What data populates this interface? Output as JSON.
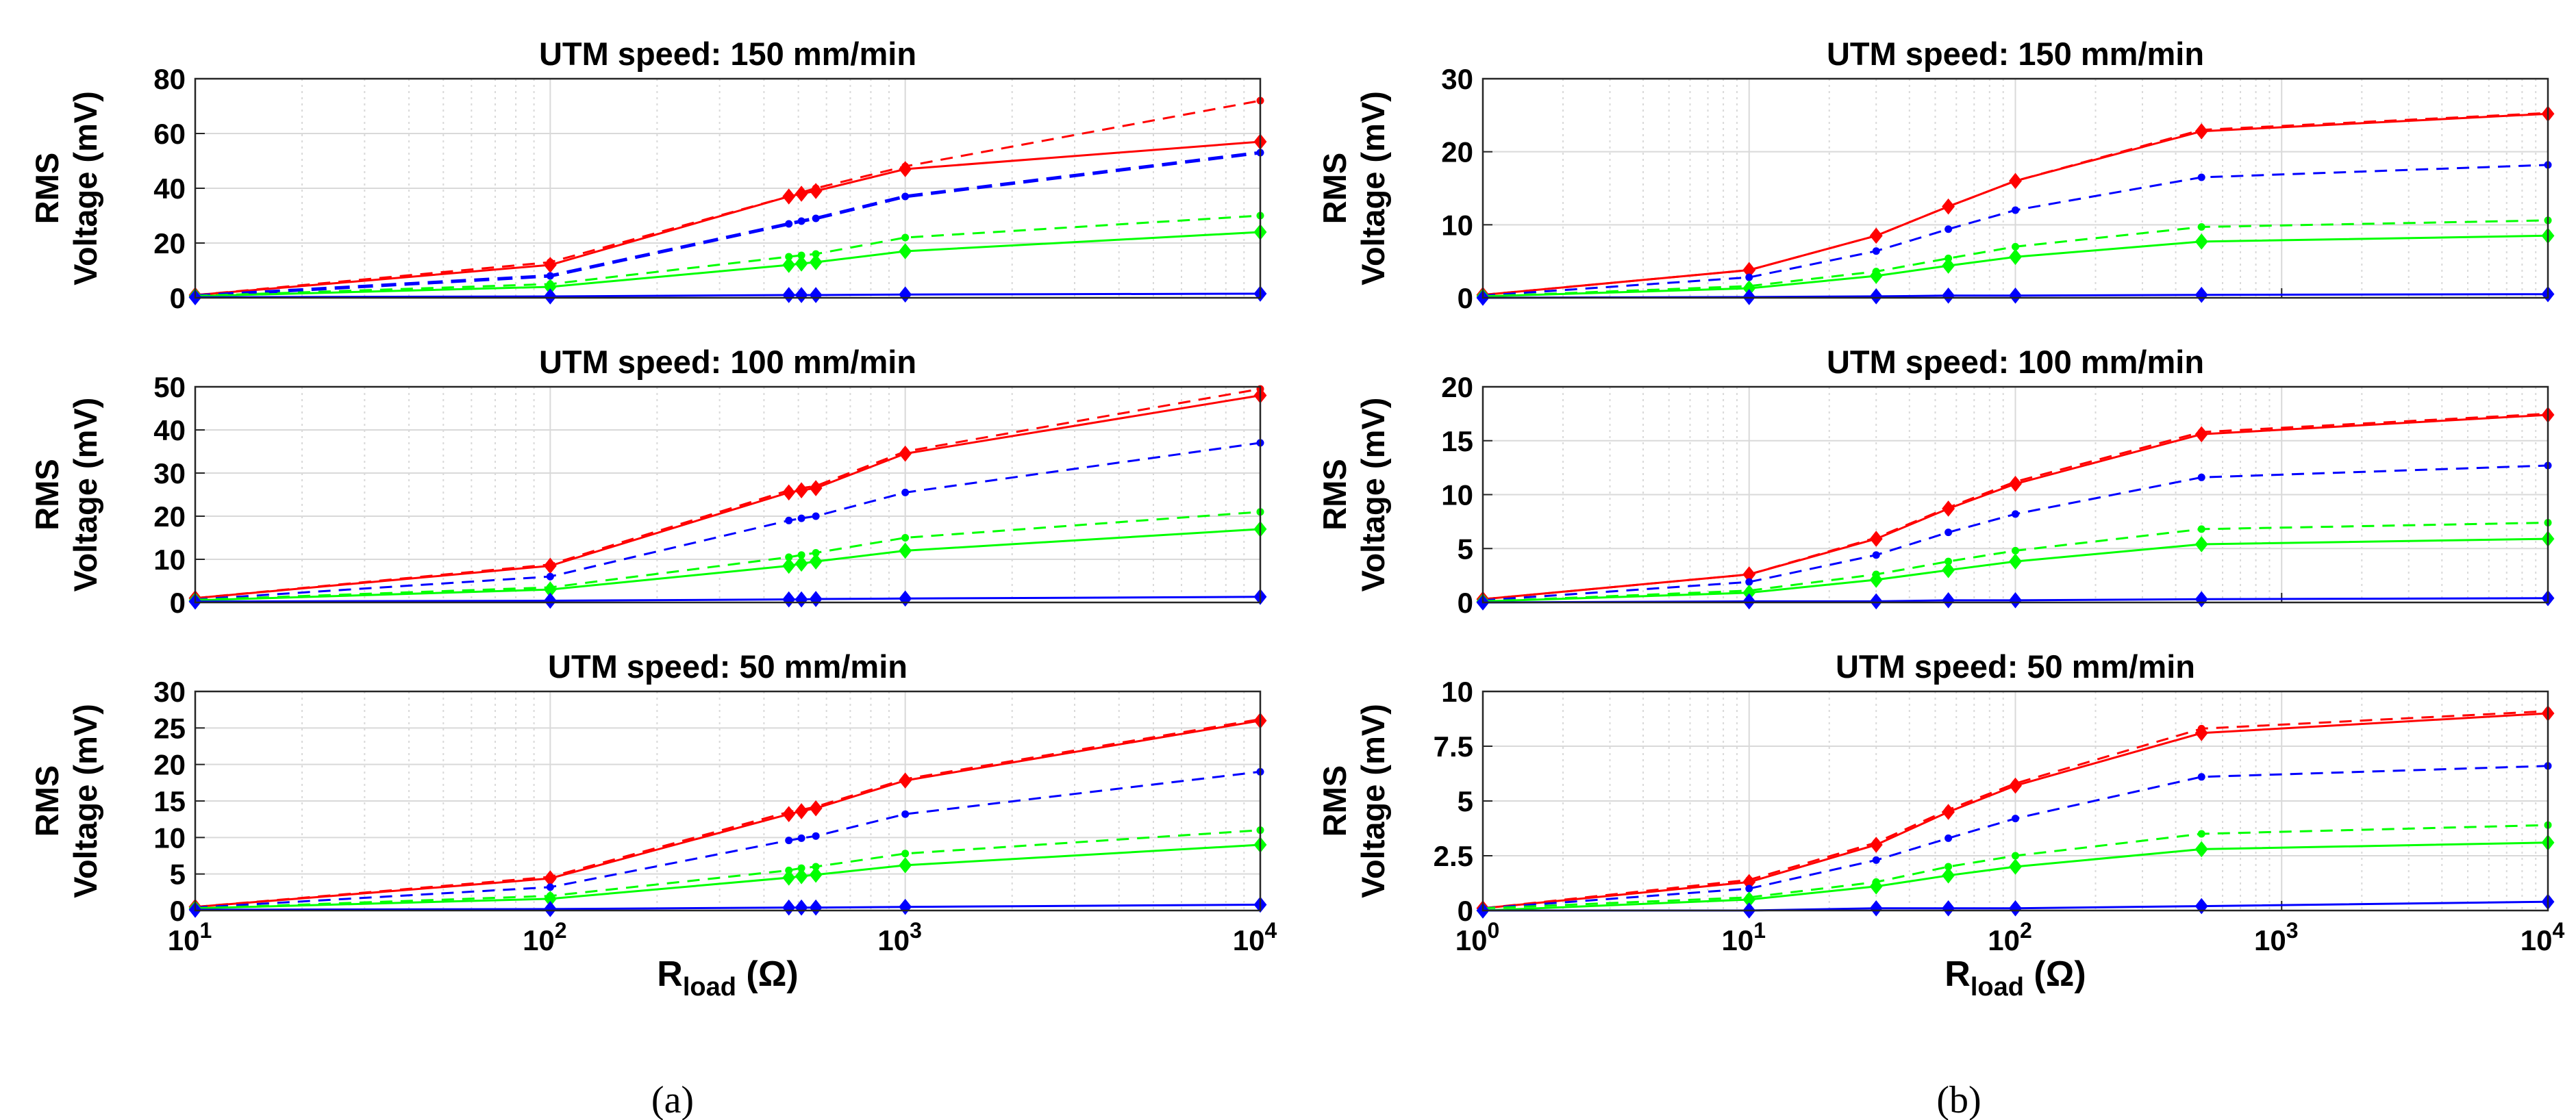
{
  "colors": {
    "red": "#ff0000",
    "blue": "#0000ff",
    "green": "#00ff00",
    "grid": "#d9d9d9",
    "axis": "#262626"
  },
  "figure": {
    "captions": [
      "(a)",
      "(b)"
    ]
  },
  "chart_data": [
    {
      "panel": "a",
      "type": "line",
      "xscale": "log",
      "title": "UTM speed: 150 mm/min",
      "ylabel_lines": [
        "RMS",
        "Voltage (mV)"
      ],
      "xlabel": "",
      "xlim": [
        10,
        10000
      ],
      "ylim": [
        0,
        80
      ],
      "yticks": [
        0,
        20,
        40,
        60,
        80
      ],
      "ytick_labels": [
        "0",
        "20",
        "40",
        "60",
        "80"
      ],
      "xtick_labels": [],
      "grid": true,
      "x": [
        10,
        100,
        470,
        510,
        560,
        1000,
        10000
      ],
      "series": [
        {
          "color": "red",
          "style": "dashed",
          "marker": "dot",
          "values": [
            1.0,
            13,
            37,
            38.5,
            40,
            48,
            72
          ]
        },
        {
          "color": "red",
          "style": "solid",
          "marker": "diamond",
          "values": [
            1.0,
            12,
            37,
            38,
            39,
            47,
            57
          ]
        },
        {
          "color": "blue",
          "style": "dashed",
          "marker": "dot",
          "width": "thick",
          "values": [
            0.7,
            8,
            27,
            28,
            29,
            37,
            53
          ]
        },
        {
          "color": "green",
          "style": "dashed",
          "marker": "dot",
          "values": [
            0.7,
            5,
            15,
            15.5,
            16,
            22,
            30
          ]
        },
        {
          "color": "green",
          "style": "solid",
          "marker": "diamond",
          "values": [
            0.6,
            4,
            12,
            12.5,
            13,
            17,
            24
          ]
        },
        {
          "color": "blue",
          "style": "solid",
          "marker": "diamond",
          "values": [
            0.2,
            0.5,
            1.0,
            1.0,
            1.0,
            1.2,
            1.5
          ]
        }
      ]
    },
    {
      "panel": "a",
      "type": "line",
      "xscale": "log",
      "title": "UTM speed: 100 mm/min",
      "ylabel_lines": [
        "RMS",
        "Voltage (mV)"
      ],
      "xlabel": "",
      "xlim": [
        10,
        10000
      ],
      "ylim": [
        0,
        50
      ],
      "yticks": [
        0,
        10,
        20,
        30,
        40,
        50
      ],
      "ytick_labels": [
        "0",
        "10",
        "20",
        "30",
        "40",
        "50"
      ],
      "xtick_labels": [],
      "grid": true,
      "x": [
        10,
        100,
        470,
        510,
        560,
        1000,
        10000
      ],
      "series": [
        {
          "color": "red",
          "style": "dashed",
          "marker": "dot",
          "values": [
            1.0,
            8.8,
            26,
            26.5,
            27,
            35,
            49.5
          ]
        },
        {
          "color": "red",
          "style": "solid",
          "marker": "diamond",
          "values": [
            1.0,
            8.5,
            25.5,
            26,
            26.5,
            34.5,
            48
          ]
        },
        {
          "color": "blue",
          "style": "dashed",
          "marker": "dot",
          "values": [
            0.7,
            6,
            19,
            19.5,
            20,
            25.5,
            37
          ]
        },
        {
          "color": "green",
          "style": "dashed",
          "marker": "dot",
          "values": [
            0.6,
            3.5,
            10.5,
            11,
            11.5,
            15,
            21
          ]
        },
        {
          "color": "green",
          "style": "solid",
          "marker": "diamond",
          "values": [
            0.5,
            3,
            8.5,
            9,
            9.5,
            12,
            17
          ]
        },
        {
          "color": "blue",
          "style": "solid",
          "marker": "diamond",
          "values": [
            0.2,
            0.4,
            0.7,
            0.7,
            0.8,
            0.9,
            1.3
          ]
        }
      ]
    },
    {
      "panel": "a",
      "type": "line",
      "xscale": "log",
      "title": "UTM speed: 50 mm/min",
      "ylabel_lines": [
        "RMS",
        "Voltage (mV)"
      ],
      "xlabel_main": "R",
      "xlabel_sub": "load",
      "xlabel_tail": " (Ω)",
      "xlim": [
        10,
        10000
      ],
      "ylim": [
        0,
        30
      ],
      "yticks": [
        0,
        5,
        10,
        15,
        20,
        25,
        30
      ],
      "ytick_labels": [
        "0",
        "5",
        "10",
        "15",
        "20",
        "25",
        "30"
      ],
      "xtick_exponents": [
        "1",
        "2",
        "3",
        "4"
      ],
      "xtick_base": "10",
      "grid": true,
      "x": [
        10,
        100,
        470,
        510,
        560,
        1000,
        10000
      ],
      "series": [
        {
          "color": "red",
          "style": "dashed",
          "marker": "dot",
          "values": [
            0.5,
            4.6,
            13.5,
            13.8,
            14.2,
            18,
            26.2
          ]
        },
        {
          "color": "red",
          "style": "solid",
          "marker": "diamond",
          "values": [
            0.5,
            4.4,
            13.2,
            13.6,
            14.0,
            17.8,
            26
          ]
        },
        {
          "color": "blue",
          "style": "dashed",
          "marker": "dot",
          "values": [
            0.4,
            3.2,
            9.6,
            9.9,
            10.2,
            13.2,
            19
          ]
        },
        {
          "color": "green",
          "style": "dashed",
          "marker": "dot",
          "values": [
            0.3,
            2.0,
            5.5,
            5.8,
            6.0,
            7.8,
            11
          ]
        },
        {
          "color": "green",
          "style": "solid",
          "marker": "diamond",
          "values": [
            0.3,
            1.6,
            4.5,
            4.7,
            4.9,
            6.2,
            9
          ]
        },
        {
          "color": "blue",
          "style": "solid",
          "marker": "diamond",
          "values": [
            0.1,
            0.2,
            0.4,
            0.4,
            0.4,
            0.5,
            0.8
          ]
        }
      ]
    },
    {
      "panel": "b",
      "type": "line",
      "xscale": "log",
      "title": "UTM speed: 150 mm/min",
      "ylabel_lines": [
        "RMS",
        "Voltage (mV)"
      ],
      "xlabel": "",
      "xlim": [
        1,
        10000
      ],
      "ylim": [
        0,
        30
      ],
      "yticks": [
        0,
        10,
        20,
        30
      ],
      "ytick_labels": [
        "0",
        "10",
        "20",
        "30"
      ],
      "xtick_labels": [],
      "grid": true,
      "x": [
        1,
        10,
        30,
        56,
        100,
        500,
        10000
      ],
      "series": [
        {
          "color": "red",
          "style": "dashed",
          "marker": "dot",
          "values": [
            0.4,
            3.8,
            8.5,
            12.5,
            16,
            23,
            25.3
          ]
        },
        {
          "color": "red",
          "style": "solid",
          "marker": "diamond",
          "values": [
            0.4,
            3.8,
            8.5,
            12.5,
            16,
            22.8,
            25.2
          ]
        },
        {
          "color": "blue",
          "style": "dashed",
          "marker": "dot",
          "values": [
            0.3,
            2.8,
            6.4,
            9.4,
            12,
            16.5,
            18.2
          ]
        },
        {
          "color": "green",
          "style": "dashed",
          "marker": "dot",
          "values": [
            0.2,
            1.6,
            3.6,
            5.4,
            7,
            9.7,
            10.6
          ]
        },
        {
          "color": "green",
          "style": "solid",
          "marker": "diamond",
          "values": [
            0.2,
            1.3,
            3.0,
            4.4,
            5.6,
            7.7,
            8.5
          ]
        },
        {
          "color": "blue",
          "style": "solid",
          "marker": "diamond",
          "values": [
            0.0,
            0.1,
            0.2,
            0.3,
            0.3,
            0.4,
            0.5
          ]
        }
      ]
    },
    {
      "panel": "b",
      "type": "line",
      "xscale": "log",
      "title": "UTM speed: 100 mm/min",
      "ylabel_lines": [
        "RMS",
        "Voltage (mV)"
      ],
      "xlabel": "",
      "xlim": [
        1,
        10000
      ],
      "ylim": [
        0,
        20
      ],
      "yticks": [
        0,
        5,
        10,
        15,
        20
      ],
      "ytick_labels": [
        "0",
        "5",
        "10",
        "15",
        "20"
      ],
      "xtick_labels": [],
      "grid": true,
      "x": [
        1,
        10,
        30,
        56,
        100,
        500,
        10000
      ],
      "series": [
        {
          "color": "red",
          "style": "dashed",
          "marker": "dot",
          "values": [
            0.3,
            2.6,
            6.0,
            8.8,
            11.2,
            15.8,
            17.5
          ]
        },
        {
          "color": "red",
          "style": "solid",
          "marker": "diamond",
          "values": [
            0.3,
            2.6,
            5.9,
            8.7,
            11.0,
            15.6,
            17.4
          ]
        },
        {
          "color": "blue",
          "style": "dashed",
          "marker": "dot",
          "values": [
            0.2,
            1.9,
            4.4,
            6.5,
            8.2,
            11.6,
            12.7
          ]
        },
        {
          "color": "green",
          "style": "dashed",
          "marker": "dot",
          "values": [
            0.1,
            1.1,
            2.6,
            3.8,
            4.8,
            6.8,
            7.4
          ]
        },
        {
          "color": "green",
          "style": "solid",
          "marker": "diamond",
          "values": [
            0.1,
            0.9,
            2.1,
            3.0,
            3.8,
            5.4,
            5.9
          ]
        },
        {
          "color": "blue",
          "style": "solid",
          "marker": "diamond",
          "values": [
            0.0,
            0.1,
            0.1,
            0.2,
            0.2,
            0.3,
            0.4
          ]
        }
      ]
    },
    {
      "panel": "b",
      "type": "line",
      "xscale": "log",
      "title": "UTM speed: 50 mm/min",
      "ylabel_lines": [
        "RMS",
        "Voltage (mV)"
      ],
      "xlabel_main": "R",
      "xlabel_sub": "load",
      "xlabel_tail": " (Ω)",
      "xlim": [
        1,
        10000
      ],
      "ylim": [
        0,
        10
      ],
      "yticks": [
        0,
        2.5,
        5,
        7.5,
        10
      ],
      "ytick_labels": [
        "0",
        "2.5",
        "5",
        "7.5",
        "10"
      ],
      "xtick_exponents": [
        "0",
        "1",
        "2",
        "3",
        "4"
      ],
      "xtick_base": "10",
      "grid": true,
      "x": [
        1,
        10,
        30,
        56,
        100,
        500,
        10000
      ],
      "series": [
        {
          "color": "red",
          "style": "dashed",
          "marker": "dot",
          "values": [
            0.1,
            1.4,
            3.1,
            4.6,
            5.8,
            8.3,
            9.1
          ]
        },
        {
          "color": "red",
          "style": "solid",
          "marker": "diamond",
          "values": [
            0.1,
            1.3,
            3.0,
            4.5,
            5.7,
            8.1,
            9.0
          ]
        },
        {
          "color": "blue",
          "style": "dashed",
          "marker": "dot",
          "values": [
            0.1,
            1.0,
            2.3,
            3.3,
            4.2,
            6.1,
            6.6
          ]
        },
        {
          "color": "green",
          "style": "dashed",
          "marker": "dot",
          "values": [
            0.1,
            0.6,
            1.3,
            2.0,
            2.5,
            3.5,
            3.9
          ]
        },
        {
          "color": "green",
          "style": "solid",
          "marker": "diamond",
          "values": [
            0.0,
            0.5,
            1.1,
            1.6,
            2.0,
            2.8,
            3.1
          ]
        },
        {
          "color": "blue",
          "style": "solid",
          "marker": "diamond",
          "values": [
            0.0,
            0.0,
            0.1,
            0.1,
            0.1,
            0.2,
            0.4
          ]
        }
      ]
    }
  ]
}
